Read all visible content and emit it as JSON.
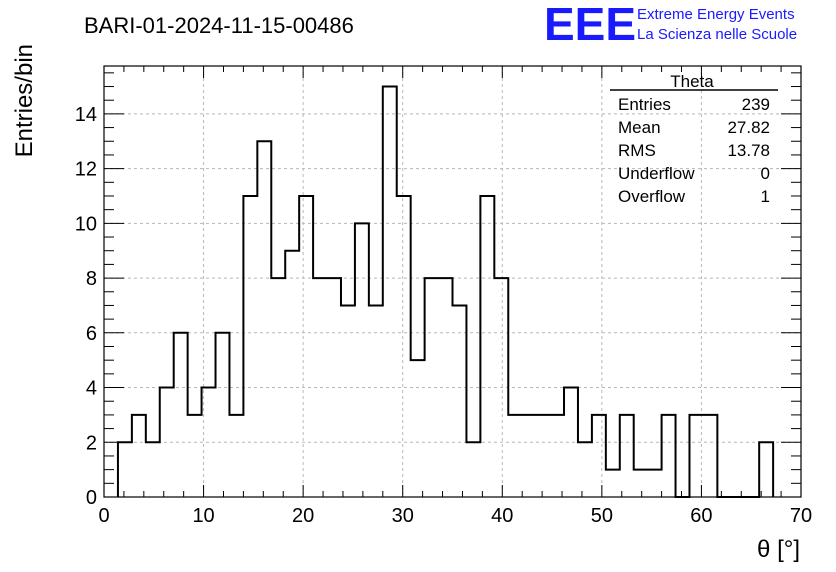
{
  "title": "BARI-01-2024-11-15-00486",
  "logo": {
    "mark": "EEE",
    "line1": "Extreme Energy Events",
    "line2": "La Scienza nelle Scuole",
    "color": "#1a1aff"
  },
  "stats": {
    "name": "Theta",
    "rows": [
      {
        "label": "Entries",
        "value": "239"
      },
      {
        "label": "Mean",
        "value": "27.82"
      },
      {
        "label": "RMS",
        "value": "13.78"
      },
      {
        "label": "Underflow",
        "value": "0"
      },
      {
        "label": "Overflow",
        "value": "1"
      }
    ]
  },
  "chart_data": {
    "type": "bar",
    "histogram": true,
    "xlabel": "θ [°]",
    "ylabel": "Entries/bin",
    "xlim": [
      0,
      70
    ],
    "ylim": [
      0,
      15.75
    ],
    "xticks": [
      0,
      10,
      20,
      30,
      40,
      50,
      60,
      70
    ],
    "yticks": [
      0,
      2,
      4,
      6,
      8,
      10,
      12,
      14
    ],
    "grid": true,
    "bin_start": 1.4,
    "bin_width": 1.4,
    "values": [
      2,
      3,
      2,
      4,
      6,
      3,
      4,
      6,
      3,
      11,
      13,
      8,
      9,
      11,
      8,
      8,
      7,
      10,
      7,
      15,
      11,
      5,
      8,
      8,
      7,
      2,
      11,
      8,
      3,
      3,
      3,
      3,
      4,
      2,
      3,
      1,
      3,
      1,
      1,
      3,
      0,
      3,
      3,
      0,
      0,
      0,
      2
    ]
  }
}
